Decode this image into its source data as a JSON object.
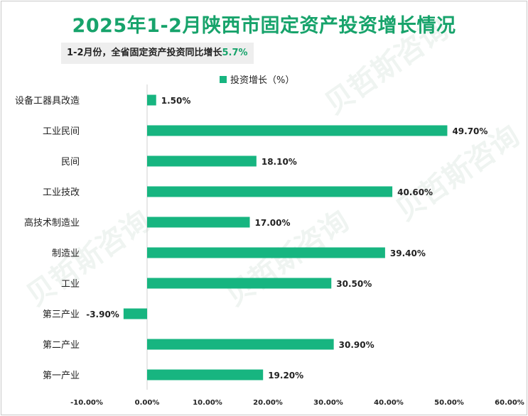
{
  "title": "2025年1-2月陕西市固定资产投资增长情况",
  "subtitle": {
    "text": "1-2月份，全省固定资产投资同比增长",
    "highlight": "5.7%"
  },
  "legend": "投资增长（%）",
  "watermark": "贝哲斯咨询",
  "colors": {
    "bar": "#17b580",
    "title": "#17a36b",
    "highlight": "#17a36b"
  },
  "chart_data": {
    "type": "bar",
    "orientation": "horizontal",
    "categories": [
      "设备工器具改造",
      "工业民间",
      "民间",
      "工业技改",
      "高技术制造业",
      "制造业",
      "工业",
      "第三产业",
      "第二产业",
      "第一产业"
    ],
    "series": [
      {
        "name": "投资增长（%）",
        "values": [
          1.5,
          49.7,
          18.1,
          40.6,
          17.0,
          39.4,
          30.5,
          -3.9,
          30.9,
          19.2
        ]
      }
    ],
    "data_labels": [
      "1.50%",
      "49.70%",
      "18.10%",
      "40.60%",
      "17.00%",
      "39.40%",
      "30.50%",
      "-3.90%",
      "30.90%",
      "19.20%"
    ],
    "xlim": [
      -10,
      60
    ],
    "xticks": [
      -10,
      0,
      10,
      20,
      30,
      40,
      50,
      60
    ],
    "xtick_labels": [
      "-10.00%",
      "0.00%",
      "10.00%",
      "20.00%",
      "30.00%",
      "40.00%",
      "50.00%",
      "60.00%"
    ],
    "grid": false,
    "legend_position": "top"
  }
}
